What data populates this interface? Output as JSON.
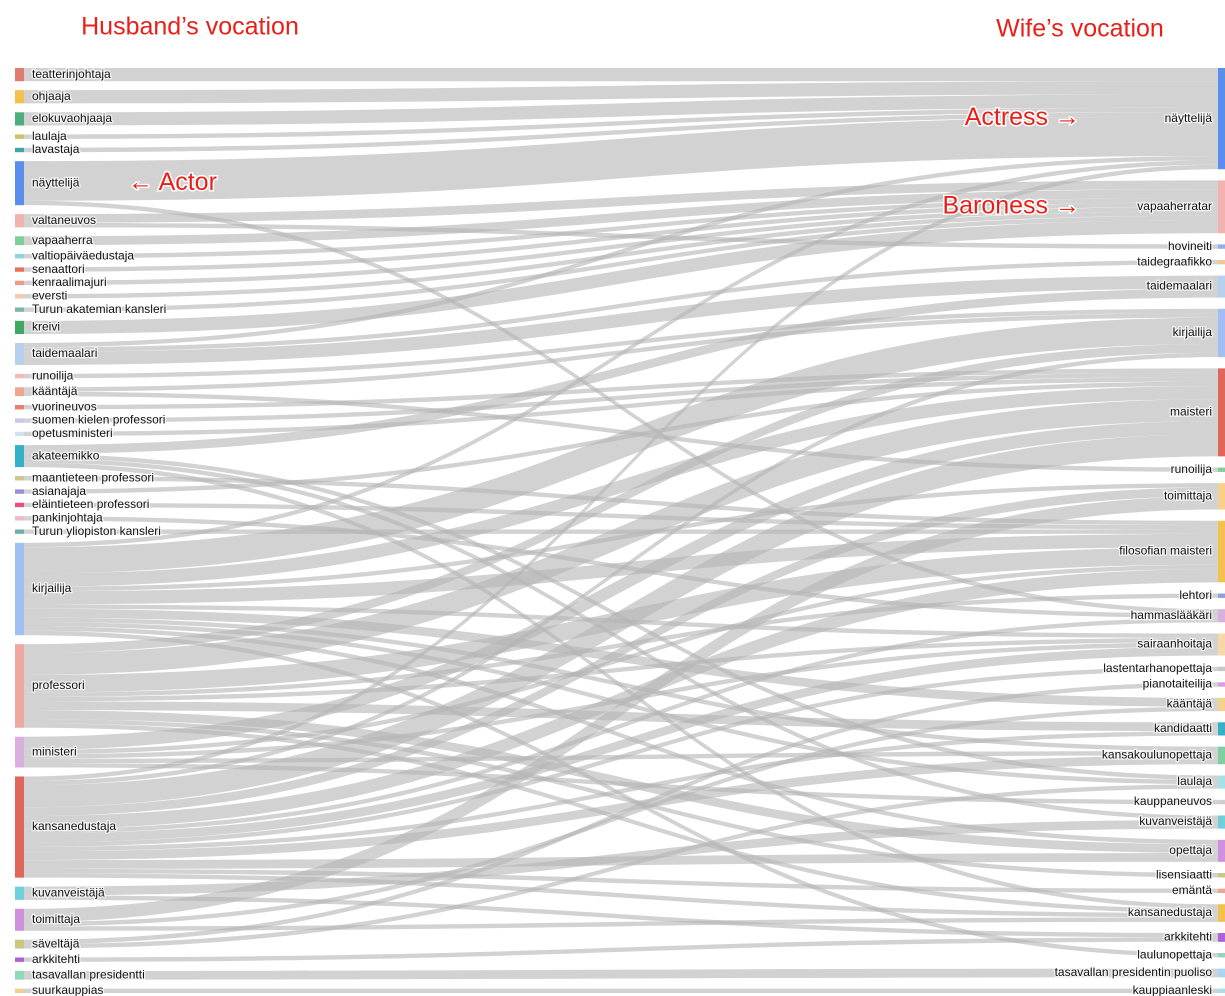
{
  "chart_data": {
    "type": "sankey",
    "left_title": "Husband’s vocation",
    "right_title": "Wife’s vocation",
    "annotations": [
      {
        "text": "← Actor",
        "side": "left",
        "node": 5
      },
      {
        "text": "Actress →",
        "side": "right",
        "node": 0
      },
      {
        "text": "Baroness →",
        "side": "right",
        "node": 1
      }
    ],
    "left_nodes": [
      {
        "name": "teatterinjohtaja",
        "color": "#e07b6f"
      },
      {
        "name": "ohjaaja",
        "color": "#f2c14e"
      },
      {
        "name": "elokuvaohjaaja",
        "color": "#4caf7d"
      },
      {
        "name": "laulaja",
        "color": "#c6c36a"
      },
      {
        "name": "lavastaja",
        "color": "#3aa6a6"
      },
      {
        "name": "näyttelijä",
        "color": "#5b8def"
      },
      {
        "name": "valtaneuvos",
        "color": "#f2b3ae"
      },
      {
        "name": "vapaaherra",
        "color": "#7fcf9a"
      },
      {
        "name": "valtiopäiväedustaja",
        "color": "#8fd3e0"
      },
      {
        "name": "senaattori",
        "color": "#e8705e"
      },
      {
        "name": "kenraalimajuri",
        "color": "#f29a8a"
      },
      {
        "name": "eversti",
        "color": "#f7c8b0"
      },
      {
        "name": "Turun akatemian kansleri",
        "color": "#7fb5b0"
      },
      {
        "name": "kreivi",
        "color": "#3fa865"
      },
      {
        "name": "taidemaalari",
        "color": "#b8d0f0"
      },
      {
        "name": "runoilija",
        "color": "#f4b8b8"
      },
      {
        "name": "kääntäjä",
        "color": "#f0a58f"
      },
      {
        "name": "vuorineuvos",
        "color": "#e8806a"
      },
      {
        "name": "suomen kielen professori",
        "color": "#c8c8e8"
      },
      {
        "name": "opetusministeri",
        "color": "#d0e4f0"
      },
      {
        "name": "akateemikko",
        "color": "#34b0c8"
      },
      {
        "name": "maantieteen professori",
        "color": "#c8c890"
      },
      {
        "name": "asianajaja",
        "color": "#9a90d8"
      },
      {
        "name": "eläintieteen professori",
        "color": "#e8507a"
      },
      {
        "name": "pankinjohtaja",
        "color": "#f0b8c8"
      },
      {
        "name": "Turun yliopiston kansleri",
        "color": "#6fb0a8"
      },
      {
        "name": "kirjailija",
        "color": "#9fbff5"
      },
      {
        "name": "professori",
        "color": "#efa8a0"
      },
      {
        "name": "ministeri",
        "color": "#d8b0e0"
      },
      {
        "name": "kansanedustaja",
        "color": "#e0665a"
      },
      {
        "name": "kuvanveistäjä",
        "color": "#6fd0dc"
      },
      {
        "name": "toimittaja",
        "color": "#d090e0"
      },
      {
        "name": "säveltäjä",
        "color": "#c8c880"
      },
      {
        "name": "arkkitehti",
        "color": "#b060d8"
      },
      {
        "name": "tasavallan presidentti",
        "color": "#90d8b8"
      },
      {
        "name": "suurkauppias",
        "color": "#f0d090"
      }
    ],
    "right_nodes": [
      {
        "name": "näyttelijä",
        "color": "#5b8def"
      },
      {
        "name": "vapaaherratar",
        "color": "#f2b3ae"
      },
      {
        "name": "hovineiti",
        "color": "#8fb0e8"
      },
      {
        "name": "taidegraafikko",
        "color": "#f0c890"
      },
      {
        "name": "taidemaalari",
        "color": "#b8d0f0"
      },
      {
        "name": "kirjailija",
        "color": "#9fbff5"
      },
      {
        "name": "maisteri",
        "color": "#e0665a"
      },
      {
        "name": "runoilija",
        "color": "#7fcf9a"
      },
      {
        "name": "toimittaja",
        "color": "#f7d08a"
      },
      {
        "name": "filosofian maisteri",
        "color": "#f2c14e"
      },
      {
        "name": "lehtori",
        "color": "#8fa0e0"
      },
      {
        "name": "hammaslääkäri",
        "color": "#d8b0e0"
      },
      {
        "name": "sairaanhoitaja",
        "color": "#f7d8a8"
      },
      {
        "name": "lastentarhanopettaja",
        "color": "#c8c8c8"
      },
      {
        "name": "pianotaiteilija",
        "color": "#d8a0e0"
      },
      {
        "name": "kääntäjä",
        "color": "#f7d08a"
      },
      {
        "name": "kandidaatti",
        "color": "#34b0c8"
      },
      {
        "name": "kansakoulunopettaja",
        "color": "#7fcfa0"
      },
      {
        "name": "laulaja",
        "color": "#a8e0e8"
      },
      {
        "name": "kauppaneuvos",
        "color": "#d0d0d0"
      },
      {
        "name": "kuvanveistäjä",
        "color": "#6fd0dc"
      },
      {
        "name": "opettaja",
        "color": "#d090e0"
      },
      {
        "name": "lisensiaatti",
        "color": "#c8c880"
      },
      {
        "name": "emäntä",
        "color": "#f0a58f"
      },
      {
        "name": "kansanedustaja",
        "color": "#f2c14e"
      },
      {
        "name": "arkkitehti",
        "color": "#b060d8"
      },
      {
        "name": "laulunopettaja",
        "color": "#9ad0c0"
      },
      {
        "name": "tasavallan presidentin puoliso",
        "color": "#a8d8f0"
      },
      {
        "name": "kauppiaanleski",
        "color": "#a8e0e8"
      }
    ],
    "links": [
      {
        "source": 0,
        "target": 0,
        "value": 3
      },
      {
        "source": 1,
        "target": 0,
        "value": 3
      },
      {
        "source": 2,
        "target": 0,
        "value": 3
      },
      {
        "source": 3,
        "target": 0,
        "value": 1
      },
      {
        "source": 4,
        "target": 0,
        "value": 1
      },
      {
        "source": 5,
        "target": 0,
        "value": 9
      },
      {
        "source": 14,
        "target": 0,
        "value": 1
      },
      {
        "source": 26,
        "target": 0,
        "value": 1
      },
      {
        "source": 29,
        "target": 0,
        "value": 1
      },
      {
        "source": 6,
        "target": 1,
        "value": 2
      },
      {
        "source": 7,
        "target": 1,
        "value": 2
      },
      {
        "source": 8,
        "target": 1,
        "value": 1
      },
      {
        "source": 9,
        "target": 1,
        "value": 1
      },
      {
        "source": 10,
        "target": 1,
        "value": 1
      },
      {
        "source": 11,
        "target": 1,
        "value": 1
      },
      {
        "source": 12,
        "target": 1,
        "value": 1
      },
      {
        "source": 13,
        "target": 1,
        "value": 3
      },
      {
        "source": 6,
        "target": 2,
        "value": 1
      },
      {
        "source": 14,
        "target": 3,
        "value": 1
      },
      {
        "source": 14,
        "target": 4,
        "value": 3
      },
      {
        "source": 20,
        "target": 4,
        "value": 2
      },
      {
        "source": 26,
        "target": 5,
        "value": 6
      },
      {
        "source": 15,
        "target": 5,
        "value": 1
      },
      {
        "source": 16,
        "target": 5,
        "value": 1
      },
      {
        "source": 27,
        "target": 5,
        "value": 2
      },
      {
        "source": 29,
        "target": 5,
        "value": 1
      },
      {
        "source": 27,
        "target": 6,
        "value": 5
      },
      {
        "source": 28,
        "target": 6,
        "value": 3
      },
      {
        "source": 29,
        "target": 6,
        "value": 5
      },
      {
        "source": 26,
        "target": 6,
        "value": 3
      },
      {
        "source": 17,
        "target": 6,
        "value": 1
      },
      {
        "source": 18,
        "target": 6,
        "value": 1
      },
      {
        "source": 19,
        "target": 6,
        "value": 1
      },
      {
        "source": 22,
        "target": 6,
        "value": 1
      },
      {
        "source": 16,
        "target": 7,
        "value": 1
      },
      {
        "source": 31,
        "target": 8,
        "value": 3
      },
      {
        "source": 26,
        "target": 8,
        "value": 1
      },
      {
        "source": 29,
        "target": 8,
        "value": 2
      },
      {
        "source": 27,
        "target": 9,
        "value": 4
      },
      {
        "source": 26,
        "target": 9,
        "value": 3
      },
      {
        "source": 29,
        "target": 9,
        "value": 3
      },
      {
        "source": 21,
        "target": 9,
        "value": 1
      },
      {
        "source": 23,
        "target": 9,
        "value": 1
      },
      {
        "source": 25,
        "target": 9,
        "value": 1
      },
      {
        "source": 28,
        "target": 9,
        "value": 1
      },
      {
        "source": 27,
        "target": 10,
        "value": 1
      },
      {
        "source": 29,
        "target": 11,
        "value": 1
      },
      {
        "source": 5,
        "target": 11,
        "value": 1
      },
      {
        "source": 24,
        "target": 11,
        "value": 1
      },
      {
        "source": 29,
        "target": 12,
        "value": 2
      },
      {
        "source": 27,
        "target": 12,
        "value": 1
      },
      {
        "source": 28,
        "target": 12,
        "value": 1
      },
      {
        "source": 26,
        "target": 12,
        "value": 1
      },
      {
        "source": 29,
        "target": 13,
        "value": 1
      },
      {
        "source": 32,
        "target": 14,
        "value": 1
      },
      {
        "source": 26,
        "target": 15,
        "value": 2
      },
      {
        "source": 31,
        "target": 15,
        "value": 1
      },
      {
        "source": 27,
        "target": 16,
        "value": 2
      },
      {
        "source": 29,
        "target": 16,
        "value": 1
      },
      {
        "source": 29,
        "target": 17,
        "value": 2
      },
      {
        "source": 26,
        "target": 17,
        "value": 1
      },
      {
        "source": 28,
        "target": 17,
        "value": 1
      },
      {
        "source": 32,
        "target": 18,
        "value": 1
      },
      {
        "source": 20,
        "target": 18,
        "value": 1
      },
      {
        "source": 26,
        "target": 18,
        "value": 1
      },
      {
        "source": 28,
        "target": 19,
        "value": 1
      },
      {
        "source": 30,
        "target": 20,
        "value": 2
      },
      {
        "source": 20,
        "target": 20,
        "value": 1
      },
      {
        "source": 29,
        "target": 21,
        "value": 2
      },
      {
        "source": 27,
        "target": 21,
        "value": 2
      },
      {
        "source": 26,
        "target": 21,
        "value": 1
      },
      {
        "source": 27,
        "target": 22,
        "value": 1
      },
      {
        "source": 29,
        "target": 23,
        "value": 1
      },
      {
        "source": 29,
        "target": 24,
        "value": 1
      },
      {
        "source": 27,
        "target": 24,
        "value": 1
      },
      {
        "source": 31,
        "target": 24,
        "value": 1
      },
      {
        "source": 20,
        "target": 24,
        "value": 1
      },
      {
        "source": 33,
        "target": 25,
        "value": 1
      },
      {
        "source": 30,
        "target": 25,
        "value": 1
      },
      {
        "source": 26,
        "target": 26,
        "value": 1
      },
      {
        "source": 34,
        "target": 27,
        "value": 2
      },
      {
        "source": 35,
        "target": 28,
        "value": 1
      }
    ]
  }
}
